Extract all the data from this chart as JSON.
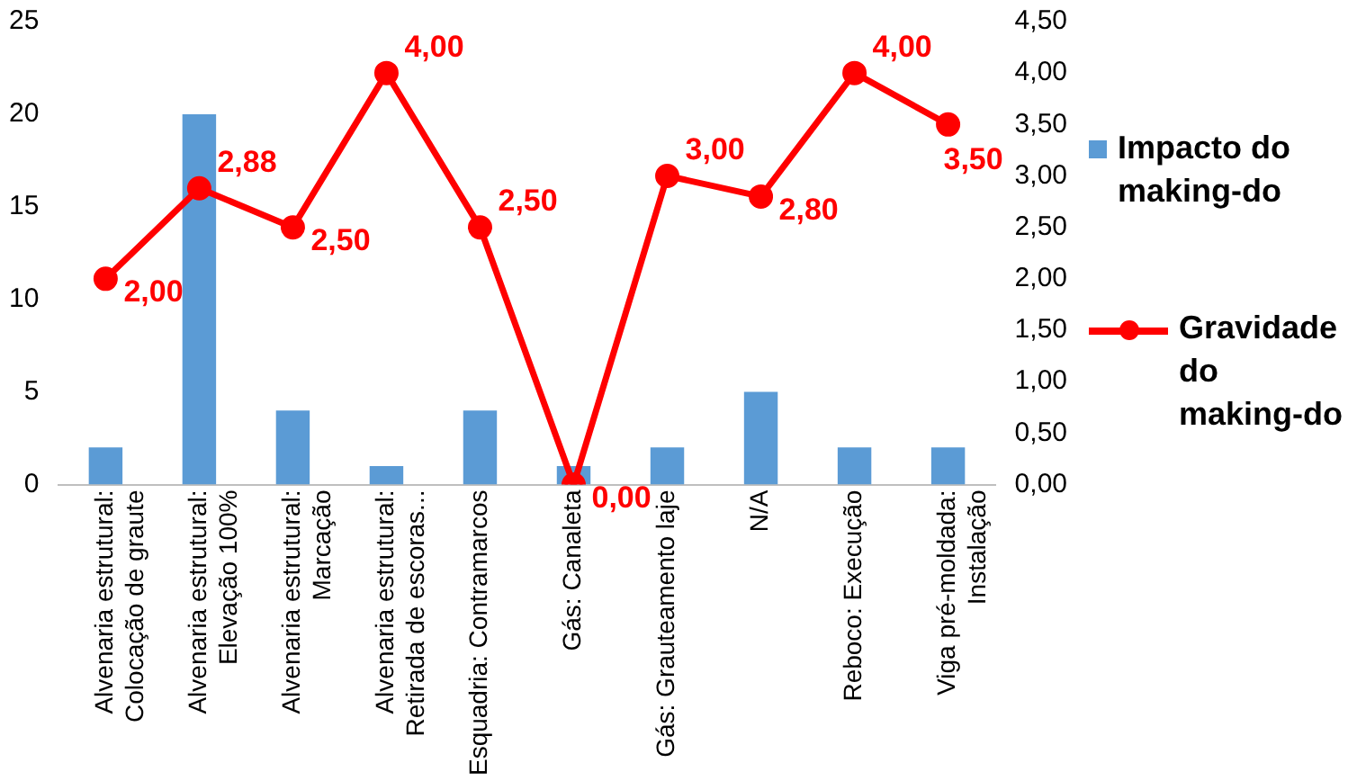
{
  "chart_data": {
    "type": "bar",
    "categories": [
      "Alvenaria estrutural: Colocação de graute",
      "Alvenaria estrutural: Elevação 100%",
      "Alvenaria estrutural: Marcação",
      "Alvenaria estrutural: Retirada de escoras...",
      "Esquadria: Contramarcos",
      "Gás: Canaleta",
      "Gás: Grauteamento laje",
      "N/A",
      "Reboco: Execução",
      "Viga pré-moldada: Instalação"
    ],
    "series": [
      {
        "name": "Impacto do making-do",
        "color": "#5b9bd5",
        "values": [
          2,
          20,
          4,
          1,
          4,
          1,
          2,
          5,
          2,
          2
        ]
      },
      {
        "name": "Gravidade do making-do",
        "type": "line",
        "axis": "y2",
        "color": "#ff0000",
        "marker": "circle",
        "values": [
          2.0,
          2.88,
          2.5,
          4.0,
          2.5,
          0.0,
          3.0,
          2.8,
          4.0,
          3.5
        ],
        "value_labels": [
          "2,00",
          "2,88",
          "2,50",
          "4,00",
          "2,50",
          "0,00",
          "3,00",
          "2,80",
          "4,00",
          "3,50"
        ]
      }
    ],
    "ylim": [
      0,
      25
    ],
    "yticks": [
      0,
      5,
      10,
      15,
      20,
      25
    ],
    "y2lim": [
      0,
      4.5
    ],
    "y2ticks": [
      {
        "value": 0,
        "label": "0,00"
      },
      {
        "value": 0.5,
        "label": "0,50"
      },
      {
        "value": 1,
        "label": "1,00"
      },
      {
        "value": 1.5,
        "label": "1,50"
      },
      {
        "value": 2,
        "label": "2,00"
      },
      {
        "value": 2.5,
        "label": "2,50"
      },
      {
        "value": 3,
        "label": "3,00"
      },
      {
        "value": 3.5,
        "label": "3,50"
      },
      {
        "value": 4,
        "label": "4,00"
      },
      {
        "value": 4.5,
        "label": "4,50"
      }
    ],
    "grid": false,
    "legend": "right"
  }
}
